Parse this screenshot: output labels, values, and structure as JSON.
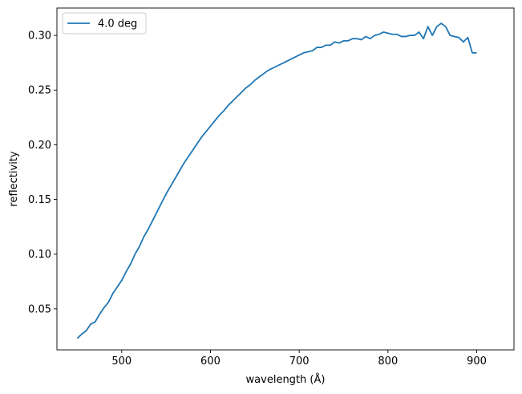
{
  "chart_data": {
    "type": "line",
    "title": "",
    "xlabel": "wavelength (Å)",
    "ylabel": "reflectivity",
    "xlim": [
      427,
      942
    ],
    "ylim": [
      0.0125,
      0.325
    ],
    "xticks": [
      500,
      600,
      700,
      800,
      900
    ],
    "yticks": [
      0.05,
      0.1,
      0.15,
      0.2,
      0.25,
      0.3
    ],
    "xtick_labels": [
      "500",
      "600",
      "700",
      "800",
      "900"
    ],
    "ytick_labels": [
      "0.05",
      "0.10",
      "0.15",
      "0.20",
      "0.25",
      "0.30"
    ],
    "grid": false,
    "legend": "top-left",
    "colors": {
      "series": "#1f77b4",
      "axes": "#000000"
    },
    "series": [
      {
        "name": "4.0 deg",
        "x": [
          450,
          455,
          460,
          465,
          470,
          475,
          480,
          485,
          490,
          495,
          500,
          505,
          510,
          515,
          520,
          525,
          530,
          535,
          540,
          545,
          550,
          555,
          560,
          565,
          570,
          575,
          580,
          585,
          590,
          595,
          600,
          605,
          610,
          615,
          620,
          625,
          630,
          635,
          640,
          645,
          650,
          655,
          660,
          665,
          670,
          675,
          680,
          685,
          690,
          695,
          700,
          705,
          710,
          715,
          720,
          725,
          730,
          735,
          740,
          745,
          750,
          755,
          760,
          765,
          770,
          775,
          780,
          785,
          790,
          795,
          800,
          805,
          810,
          815,
          820,
          825,
          830,
          835,
          840,
          845,
          850,
          855,
          860,
          865,
          870,
          875,
          880,
          885,
          890,
          895,
          900
        ],
        "y": [
          0.023,
          0.027,
          0.03,
          0.036,
          0.038,
          0.045,
          0.051,
          0.056,
          0.064,
          0.07,
          0.076,
          0.084,
          0.091,
          0.1,
          0.107,
          0.116,
          0.123,
          0.131,
          0.139,
          0.147,
          0.155,
          0.162,
          0.169,
          0.176,
          0.183,
          0.189,
          0.195,
          0.201,
          0.207,
          0.212,
          0.217,
          0.222,
          0.227,
          0.231,
          0.236,
          0.24,
          0.244,
          0.248,
          0.252,
          0.255,
          0.259,
          0.262,
          0.265,
          0.268,
          0.27,
          0.272,
          0.274,
          0.276,
          0.278,
          0.28,
          0.282,
          0.284,
          0.285,
          0.286,
          0.289,
          0.289,
          0.291,
          0.291,
          0.294,
          0.293,
          0.295,
          0.295,
          0.297,
          0.297,
          0.296,
          0.299,
          0.297,
          0.3,
          0.301,
          0.303,
          0.302,
          0.301,
          0.301,
          0.299,
          0.299,
          0.3,
          0.3,
          0.303,
          0.297,
          0.308,
          0.3,
          0.308,
          0.311,
          0.308,
          0.3,
          0.299,
          0.298,
          0.294,
          0.298,
          0.284,
          0.284
        ]
      }
    ]
  }
}
